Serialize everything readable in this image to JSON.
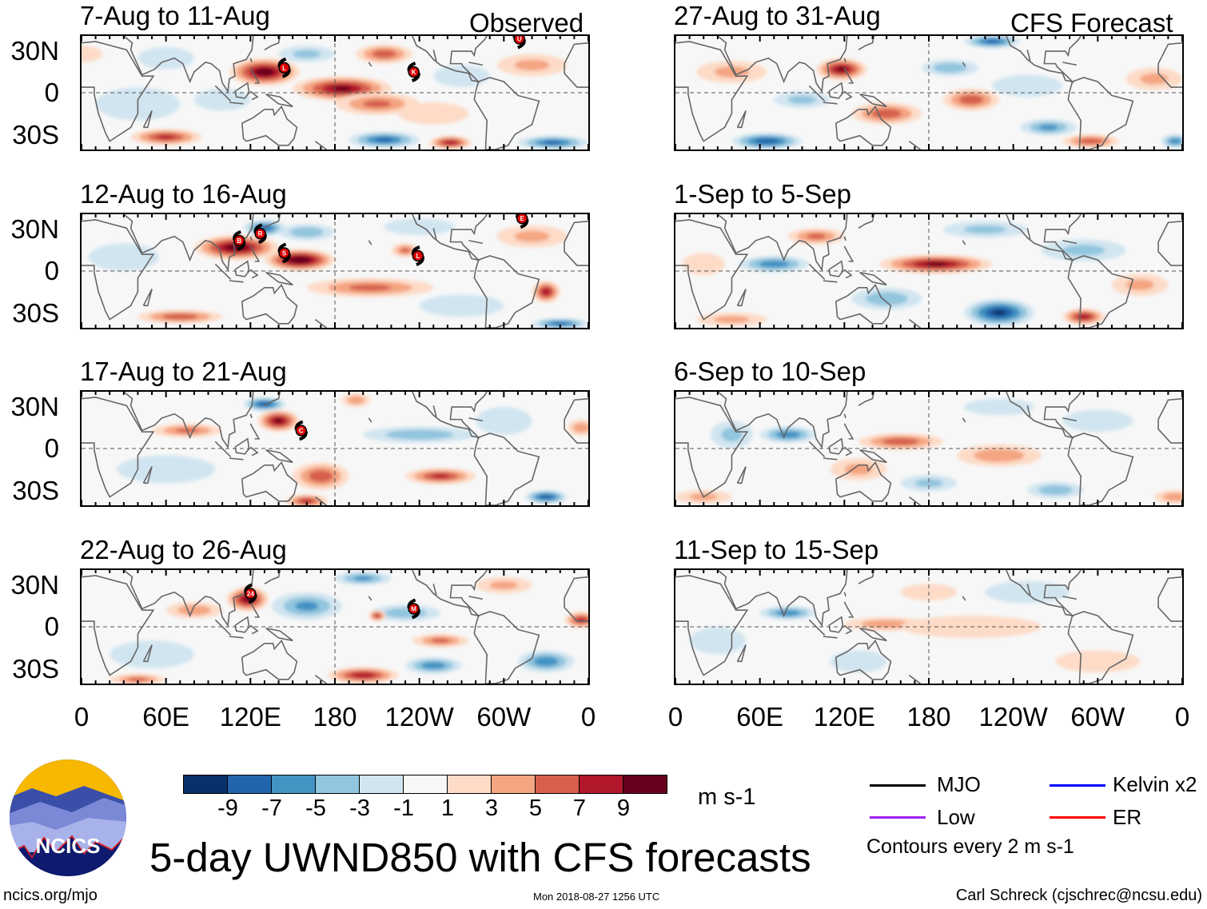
{
  "figure_title": "5-day UWND850 with CFS forecasts",
  "logo_text": "NCICS",
  "footer": {
    "left": "ncics.org/mjo",
    "center": "Mon 2018-08-27 1256 UTC",
    "right": "Carl Schreck (cjschrec@ncsu.edu)"
  },
  "column_labels": {
    "observed": "Observed",
    "forecast": "CFS Forecast"
  },
  "y_ticks": [
    "30N",
    "0",
    "30S"
  ],
  "x_ticks": [
    "0",
    "60E",
    "120E",
    "180",
    "120W",
    "60W",
    "0"
  ],
  "colorbar": {
    "unit": "m s-1",
    "labels": [
      "-9",
      "-7",
      "-5",
      "-3",
      "-1",
      "1",
      "3",
      "5",
      "7",
      "9"
    ],
    "colors": [
      "#08306b",
      "#2166ac",
      "#4393c3",
      "#92c5de",
      "#d1e5f0",
      "#f7f7f7",
      "#fddbc7",
      "#f4a582",
      "#d6604d",
      "#b2182b",
      "#67001f"
    ]
  },
  "legend": {
    "items": [
      {
        "label": "MJO",
        "color": "#000000"
      },
      {
        "label": "Low",
        "color": "#a020f0"
      },
      {
        "label": "Kelvin x2",
        "color": "#0000ff"
      },
      {
        "label": "ER",
        "color": "#ff0000"
      }
    ],
    "note": "Contours every 2 m s-1"
  },
  "chart_data": {
    "type": "heatmap",
    "variable": "850-hPa zonal wind anomaly",
    "unit": "m s-1",
    "lon_range": [
      0,
      360
    ],
    "lat_range": [
      -41,
      41
    ],
    "features_format": "[lon, lat, value, lon_halfwidth_deg, lat_halfwidth_deg]",
    "panels": [
      {
        "title": "7-Aug to 11-Aug",
        "column": "observed",
        "row": 0,
        "features": [
          [
            130,
            15,
            11,
            25,
            10
          ],
          [
            185,
            3,
            10,
            35,
            9
          ],
          [
            210,
            -8,
            6,
            30,
            8
          ],
          [
            60,
            -32,
            8,
            25,
            6
          ],
          [
            215,
            -34,
            -8,
            25,
            6
          ],
          [
            262,
            -36,
            9,
            15,
            5
          ],
          [
            335,
            -36,
            -8,
            25,
            5
          ],
          [
            215,
            28,
            7,
            20,
            7
          ],
          [
            40,
            -8,
            -3,
            30,
            12
          ],
          [
            100,
            -5,
            -3,
            20,
            8
          ],
          [
            270,
            12,
            -3,
            20,
            8
          ],
          [
            160,
            28,
            -4,
            20,
            6
          ],
          [
            320,
            20,
            4,
            25,
            8
          ],
          [
            60,
            25,
            -3,
            20,
            8
          ],
          [
            0,
            28,
            3,
            15,
            6
          ],
          [
            250,
            -15,
            3,
            25,
            8
          ]
        ],
        "storms": [
          [
            144,
            18,
            "L"
          ],
          [
            236,
            15,
            "K"
          ],
          [
            311,
            39,
            "U"
          ]
        ]
      },
      {
        "title": "12-Aug to 16-Aug",
        "column": "observed",
        "row": 1,
        "features": [
          [
            110,
            17,
            11,
            30,
            9
          ],
          [
            155,
            8,
            12,
            25,
            8
          ],
          [
            130,
            31,
            -8,
            15,
            6
          ],
          [
            160,
            28,
            -5,
            20,
            6
          ],
          [
            205,
            -12,
            6,
            45,
            7
          ],
          [
            70,
            -33,
            7,
            30,
            5
          ],
          [
            330,
            -15,
            9,
            10,
            8
          ],
          [
            340,
            -38,
            -8,
            20,
            4
          ],
          [
            230,
            15,
            6,
            10,
            5
          ],
          [
            30,
            10,
            -3,
            25,
            10
          ],
          [
            270,
            -25,
            -3,
            30,
            8
          ],
          [
            240,
            32,
            -3,
            25,
            6
          ],
          [
            320,
            25,
            4,
            25,
            8
          ]
        ],
        "storms": [
          [
            112,
            22,
            "B"
          ],
          [
            127,
            27,
            "R"
          ],
          [
            144,
            13,
            "S"
          ],
          [
            239,
            11,
            "L"
          ],
          [
            313,
            38,
            "E"
          ]
        ]
      },
      {
        "title": "17-Aug to 21-Aug",
        "column": "observed",
        "row": 2,
        "features": [
          [
            140,
            20,
            10,
            15,
            8
          ],
          [
            130,
            32,
            -9,
            15,
            5
          ],
          [
            75,
            13,
            6,
            25,
            5
          ],
          [
            170,
            -20,
            7,
            20,
            10
          ],
          [
            255,
            -20,
            8,
            25,
            6
          ],
          [
            330,
            -35,
            -9,
            15,
            5
          ],
          [
            240,
            10,
            -5,
            40,
            6
          ],
          [
            160,
            -38,
            8,
            15,
            5
          ],
          [
            60,
            -15,
            -3,
            35,
            10
          ],
          [
            300,
            20,
            -3,
            20,
            10
          ],
          [
            195,
            35,
            5,
            10,
            5
          ],
          [
            355,
            15,
            5,
            10,
            6
          ]
        ],
        "storms": [
          [
            156,
            13,
            "C"
          ]
        ]
      },
      {
        "title": "22-Aug to 26-Aug",
        "column": "observed",
        "row": 3,
        "features": [
          [
            118,
            20,
            10,
            15,
            9
          ],
          [
            80,
            12,
            5,
            20,
            6
          ],
          [
            160,
            15,
            -6,
            25,
            10
          ],
          [
            200,
            -35,
            9,
            25,
            6
          ],
          [
            255,
            -10,
            6,
            20,
            5
          ],
          [
            250,
            -28,
            -7,
            20,
            6
          ],
          [
            330,
            -25,
            -7,
            20,
            8
          ],
          [
            200,
            35,
            -6,
            20,
            5
          ],
          [
            230,
            10,
            -5,
            25,
            6
          ],
          [
            355,
            5,
            8,
            12,
            6
          ],
          [
            210,
            8,
            8,
            6,
            4
          ],
          [
            50,
            -20,
            -3,
            30,
            10
          ],
          [
            300,
            30,
            4,
            20,
            6
          ],
          [
            40,
            -38,
            6,
            20,
            4
          ]
        ],
        "storms": [
          [
            120,
            24,
            "24"
          ],
          [
            236,
            13,
            "M"
          ]
        ]
      },
      {
        "title": "27-Aug to 31-Aug",
        "column": "forecast",
        "row": 0,
        "features": [
          [
            118,
            17,
            10,
            18,
            8
          ],
          [
            65,
            -35,
            -9,
            25,
            6
          ],
          [
            150,
            -15,
            7,
            25,
            8
          ],
          [
            210,
            -5,
            7,
            20,
            8
          ],
          [
            225,
            37,
            -8,
            20,
            5
          ],
          [
            265,
            -25,
            -6,
            20,
            6
          ],
          [
            295,
            -35,
            7,
            20,
            5
          ],
          [
            355,
            -35,
            -7,
            10,
            5
          ],
          [
            195,
            18,
            -5,
            20,
            6
          ],
          [
            250,
            5,
            -3,
            25,
            8
          ],
          [
            40,
            15,
            4,
            25,
            8
          ],
          [
            340,
            10,
            4,
            20,
            8
          ],
          [
            90,
            -5,
            -4,
            20,
            6
          ]
        ],
        "storms": []
      },
      {
        "title": "1-Sep to 5-Sep",
        "column": "forecast",
        "row": 1,
        "features": [
          [
            185,
            5,
            10,
            40,
            7
          ],
          [
            70,
            5,
            -7,
            25,
            6
          ],
          [
            230,
            -30,
            -10,
            25,
            10
          ],
          [
            290,
            -33,
            9,
            15,
            6
          ],
          [
            150,
            -20,
            -5,
            25,
            8
          ],
          [
            100,
            25,
            6,
            20,
            6
          ],
          [
            290,
            15,
            -4,
            30,
            8
          ],
          [
            40,
            -35,
            4,
            25,
            5
          ],
          [
            330,
            -10,
            4,
            20,
            8
          ],
          [
            220,
            30,
            -4,
            30,
            6
          ],
          [
            20,
            5,
            3,
            15,
            8
          ]
        ],
        "storms": []
      },
      {
        "title": "6-Sep to 10-Sep",
        "column": "forecast",
        "row": 2,
        "features": [
          [
            80,
            10,
            -7,
            20,
            6
          ],
          [
            160,
            5,
            7,
            30,
            6
          ],
          [
            230,
            -5,
            5,
            30,
            8
          ],
          [
            270,
            -30,
            -5,
            20,
            6
          ],
          [
            180,
            -25,
            -4,
            20,
            6
          ],
          [
            20,
            -35,
            4,
            20,
            5
          ],
          [
            355,
            -35,
            5,
            15,
            5
          ],
          [
            40,
            10,
            -4,
            15,
            10
          ],
          [
            300,
            20,
            -3,
            25,
            8
          ],
          [
            130,
            -15,
            4,
            20,
            8
          ],
          [
            230,
            30,
            -3,
            25,
            6
          ]
        ],
        "storms": []
      },
      {
        "title": "11-Sep to 15-Sep",
        "column": "forecast",
        "row": 3,
        "features": [
          [
            80,
            10,
            -7,
            20,
            5
          ],
          [
            150,
            2,
            5,
            30,
            5
          ],
          [
            210,
            0,
            3,
            50,
            8
          ],
          [
            130,
            -25,
            -3,
            20,
            8
          ],
          [
            300,
            -25,
            3,
            30,
            8
          ],
          [
            30,
            -10,
            -3,
            20,
            10
          ],
          [
            250,
            25,
            -3,
            30,
            8
          ],
          [
            180,
            25,
            3,
            20,
            6
          ]
        ],
        "storms": []
      }
    ]
  }
}
